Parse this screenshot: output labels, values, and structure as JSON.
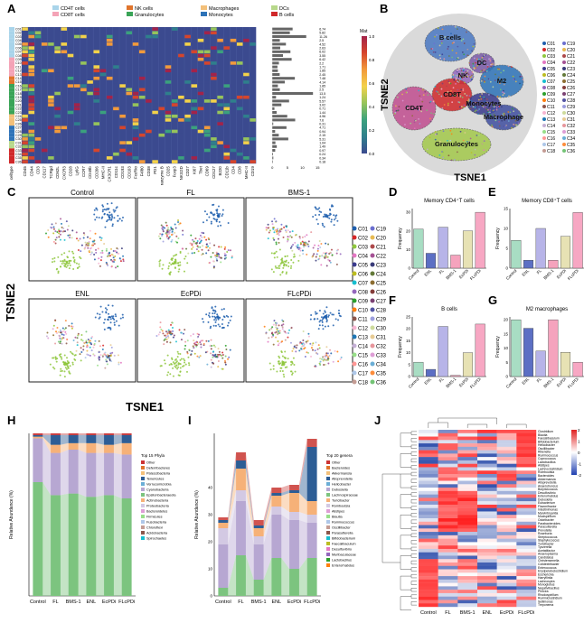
{
  "panel_labels": [
    "A",
    "B",
    "C",
    "D",
    "E",
    "F",
    "G",
    "H",
    "I",
    "J"
  ],
  "colors": {
    "cd4": "#a9d4ea",
    "cd8": "#f4a3b6",
    "nk": "#e0742c",
    "gran": "#3aa457",
    "mac": "#f3c07a",
    "mono": "#2e73b8",
    "dc": "#b7d88a",
    "bcell": "#d0282a",
    "heat_bg": "#3b4a8f"
  },
  "panelA": {
    "legend": [
      "CD4T cells",
      "CD8T cells",
      "NK cells",
      "Granulocytes",
      "Macrophages",
      "Monocytes",
      "DCs",
      "B cells"
    ],
    "row_labels": [
      "C01",
      "C02",
      "C03",
      "C04",
      "C05",
      "C06",
      "C07",
      "C08",
      "C09",
      "C10",
      "C11",
      "C12",
      "C13",
      "C14",
      "C15",
      "C16",
      "C17",
      "C18",
      "C19",
      "C20",
      "C21",
      "C22",
      "C23",
      "C24",
      "C25",
      "C26",
      "C27",
      "C28",
      "C29",
      "C30",
      "C31",
      "C32",
      "C33",
      "C34",
      "C35",
      "C36"
    ],
    "row_groups": [
      "cd4",
      "cd4",
      "cd4",
      "cd4",
      "cd4",
      "cd4",
      "cd4",
      "cd4",
      "cd8",
      "cd8",
      "cd8",
      "cd8",
      "cd8",
      "nk",
      "nk",
      "gran",
      "gran",
      "gran",
      "gran",
      "gran",
      "gran",
      "gran",
      "gran",
      "mac",
      "mac",
      "mac",
      "mono",
      "mono",
      "mono",
      "mono",
      "dc",
      "dc",
      "bcell",
      "bcell",
      "bcell",
      "bcell"
    ],
    "markers": [
      "CD45",
      "CD44",
      "CD3",
      "CD117",
      "TCRgd",
      "CD62L",
      "CXCR3",
      "CD28",
      "Ly6G",
      "CCR7",
      "CD49b",
      "CD206",
      "MHC-II",
      "CX3CR1",
      "CD11c",
      "CD193",
      "CD103",
      "FcεRIα",
      "F4/80",
      "CD38",
      "PD1",
      "Granzyme B",
      "CD25",
      "Foxp3",
      "NKG2D",
      "CD27",
      "Ki67",
      "Tbet",
      "CD69",
      "CD127",
      "B220",
      "CD11b",
      "CD4",
      "CD8",
      "MHC-II",
      "CD19"
    ],
    "celltype_label": "celltype",
    "bar_values": [
      6.74,
      5.82,
      11.26,
      2.5,
      4.52,
      2.63,
      6.02,
      3.55,
      6.42,
      2.2,
      1.71,
      1.85,
      2.45,
      7.48,
      4.14,
      1.85,
      2.5,
      13.5,
      1.24,
      5.57,
      3.02,
      0.71,
      1.44,
      4.96,
      7.6,
      0.31,
      4.71,
      0.94,
      2.15,
      5.31,
      1.04,
      1.49,
      0.97,
      0.24,
      0.34,
      0.18
    ],
    "bar_axis_ticks": [
      "0",
      "5",
      "10",
      "15"
    ],
    "colorbar_title": "Mat",
    "colorbar_ticks": [
      "1.0",
      "0.8",
      "0.6",
      "0.4",
      "0.2",
      "0.0"
    ]
  },
  "panelB": {
    "xlabel": "TSNE1",
    "ylabel": "TSNE2",
    "region_labels": [
      "B cells",
      "DC",
      "NK",
      "M2",
      "CD8T",
      "CD4T",
      "Monocytes",
      "Macrophage",
      "Granulocytes"
    ]
  },
  "cluster_legend": [
    "C01",
    "C02",
    "C03",
    "C04",
    "C05",
    "C06",
    "C07",
    "C08",
    "C09",
    "C10",
    "C11",
    "C12",
    "C13",
    "C14",
    "C15",
    "C16",
    "C17",
    "C18",
    "C19",
    "C20",
    "C21",
    "C22",
    "C23",
    "C24",
    "C25",
    "C26",
    "C27",
    "C28",
    "C29",
    "C30",
    "C31",
    "C32",
    "C33",
    "C34",
    "C35",
    "C36"
  ],
  "cluster_colors": [
    "#1f5fae",
    "#d62728",
    "#8fc73e",
    "#e377c2",
    "#3a3a8c",
    "#bcbd22",
    "#17becf",
    "#9467bd",
    "#2ca02c",
    "#ff7f0e",
    "#8c564b",
    "#f7b6d2",
    "#1f77b4",
    "#c5b0d5",
    "#98df8a",
    "#ff9896",
    "#aec7e8",
    "#c49c94",
    "#6b6ecf",
    "#e7ba52",
    "#ad494a",
    "#a55194",
    "#393b79",
    "#637939",
    "#8c6d31",
    "#843c39",
    "#7b4173",
    "#5254a3",
    "#9c9ede",
    "#cedb9c",
    "#e7cb94",
    "#e7969c",
    "#de9ed6",
    "#6baed6",
    "#fd8d3c",
    "#74c476"
  ],
  "panelC": {
    "titles": [
      "Control",
      "FL",
      "BMS-1",
      "ENL",
      "EcPDi",
      "FLcPDi"
    ],
    "xlabel": "TSNE1",
    "ylabel": "TSNE2"
  },
  "chart_data": [
    {
      "type": "bar",
      "panel": "D",
      "title": "Memory CD4⁺T cells",
      "ylabel": "Frequency",
      "categories": [
        "Control",
        "ENL",
        "FL",
        "BMS-1",
        "EcPDi",
        "FLcPDi"
      ],
      "values": [
        21,
        8,
        22,
        7,
        20,
        30
      ],
      "yticks": [
        "0",
        "10",
        "20",
        "30"
      ],
      "ylim": [
        0,
        32
      ]
    },
    {
      "type": "bar",
      "panel": "E",
      "title": "Memory CD8⁺T cells",
      "ylabel": "Frequency",
      "categories": [
        "Control",
        "ENL",
        "FL",
        "BMS-1",
        "EcPDi",
        "FLcPDi"
      ],
      "values": [
        7,
        2,
        10,
        2,
        8,
        14
      ],
      "yticks": [
        "0",
        "5",
        "10",
        "15"
      ],
      "ylim": [
        0,
        15
      ]
    },
    {
      "type": "bar",
      "panel": "F",
      "title": "B cells",
      "ylabel": "Frequency",
      "categories": [
        "Control",
        "ENL",
        "FL",
        "BMS-1",
        "EcPDi",
        "FLcPDi"
      ],
      "values": [
        6,
        3,
        21,
        0.5,
        10,
        22
      ],
      "yticks": [
        "0",
        "5",
        "10",
        "15",
        "20",
        "25"
      ],
      "ylim": [
        0,
        25
      ]
    },
    {
      "type": "bar",
      "panel": "G",
      "title": "M2 macrophages",
      "ylabel": "Frequency",
      "categories": [
        "Control",
        "ENL",
        "FL",
        "BMS-1",
        "EcPDi",
        "FLcPDi"
      ],
      "values": [
        20,
        17,
        9,
        20,
        8.5,
        5
      ],
      "yticks": [
        "0",
        "5",
        "10",
        "15",
        "20"
      ],
      "ylim": [
        0,
        21
      ]
    },
    {
      "type": "area",
      "panel": "H",
      "ylabel": "Relative Abundance (%)",
      "categories": [
        "Control",
        "FL",
        "BMS-1",
        "ENL",
        "EcPDi",
        "FLcPDi"
      ],
      "legend_title": "Top 15 Phyla",
      "series": [
        {
          "name": "Firmicutes",
          "color": "#7cc47f",
          "values": [
            70,
            62,
            63,
            61,
            62,
            60
          ]
        },
        {
          "name": "Bacteroidetes",
          "color": "#b7a7d2",
          "values": [
            27,
            26,
            27,
            27,
            26,
            27
          ]
        },
        {
          "name": "Proteobacteria",
          "color": "#f6b178",
          "values": [
            1,
            5,
            4,
            6,
            5,
            7
          ]
        },
        {
          "name": "Actinobacteria",
          "color": "#2d5d95",
          "values": [
            1,
            6,
            5,
            5,
            6,
            5
          ]
        },
        {
          "name": "Other",
          "color": "#cc3333",
          "values": [
            1,
            1,
            1,
            1,
            1,
            1
          ]
        }
      ],
      "legend": [
        "Other",
        "Deferribacteres",
        "Patescibacteria",
        "Tenericutes",
        "Verrucomicrobia",
        "Cyanobacteria",
        "Epsilonbacteraeota",
        "Actinobacteria",
        "Proteobacteria",
        "Bacteroidetes",
        "Firmicutes",
        "Fusobacteria",
        "Chloroflexi",
        "Acidobacteria",
        "Spirochaetes"
      ]
    },
    {
      "type": "area",
      "panel": "I",
      "ylabel": "Relative Abundance (%)",
      "categories": [
        "Control",
        "FL",
        "BMS-1",
        "ENL",
        "EcPDi",
        "FLcPDi"
      ],
      "legend_title": "Top 20 genera",
      "series": [
        {
          "name": "Lactobacillus",
          "color": "#7cc47f",
          "values": [
            3,
            15,
            6,
            14,
            10,
            14
          ]
        },
        {
          "name": "Muribaculaceae",
          "color": "#b7a7d2",
          "values": [
            16,
            20,
            13,
            16,
            18,
            13
          ]
        },
        {
          "name": "Bacteroides",
          "color": "#d3c9e3",
          "values": [
            6,
            4,
            3,
            3,
            3,
            3
          ]
        },
        {
          "name": "Lachnospiraceae",
          "color": "#f6b178",
          "values": [
            2,
            8,
            3,
            4,
            7,
            5
          ]
        },
        {
          "name": "Dubosiella",
          "color": "#2d5d95",
          "values": [
            1,
            3,
            1,
            1,
            1,
            20
          ]
        },
        {
          "name": "Other",
          "color": "#d0534f",
          "values": [
            1,
            3,
            2,
            2,
            2,
            3
          ]
        }
      ],
      "legend": [
        "Other",
        "Bacteroides",
        "Akkermansia",
        "Alloprevotella",
        "Helicobacter",
        "Dubosiella",
        "Lachnospiraceae",
        "Turicibacter",
        "Romboutsia",
        "Alistipes",
        "Blautia",
        "Ruminococcus",
        "Oscillibacter",
        "Parasutterella",
        "Bifidobacterium",
        "Faecalibaculum",
        "Desulfovibrio",
        "Muribaculaceae",
        "Lactobacillus",
        "Enterorhabdus"
      ],
      "yticks": [
        "0",
        "10",
        "20",
        "30",
        "40"
      ]
    },
    {
      "type": "heatmap",
      "panel": "J",
      "columns": [
        "Control",
        "FL",
        "BMS-1",
        "ENL",
        "EcPDi",
        "FLcPDi"
      ],
      "colorbar_ticks": [
        "2",
        "1",
        "0",
        "-1",
        "-2"
      ],
      "rows": [
        "Clostridium",
        "Blautia",
        "Faecalibaculum",
        "Bifidobacterium",
        "Helicobacter",
        "Oscillibacter",
        "Rikenella",
        "Ruminococcus",
        "Coprococcus",
        "Lactobacillus",
        "Alistipes",
        "Lachnoclostridium",
        "Romboutsia",
        "Bacteroides",
        "Akkermansia",
        "Alloprevotella",
        "Anaerotruncus",
        "Butyricicoccus",
        "Desulfovibrio",
        "Enterorhabdus",
        "Dubosiella",
        "Eubacterium",
        "Flavonifractor",
        "Intestinimonas",
        "Marvinbryantia",
        "Mucispirillum",
        "Odoribacter",
        "Parabacteroides",
        "Parasutterella",
        "Prevotella",
        "Roseburia",
        "Streptococcus",
        "Staphylococcus",
        "Turicibacter",
        "Tyzzerella",
        "Acetatifactor",
        "Anaeroplasma",
        "Candidatus",
        "Christensenella",
        "Colidextribacter",
        "Enterococcus",
        "Erysipelatoclostridium",
        "Escherichia",
        "Harryflintia",
        "Lachnospira",
        "Monoglobus",
        "Negativibacillus",
        "Phocea",
        "Rhodospirillum",
        "Ruminiclostridium",
        "Sellimonas",
        "Treponema"
      ]
    }
  ]
}
